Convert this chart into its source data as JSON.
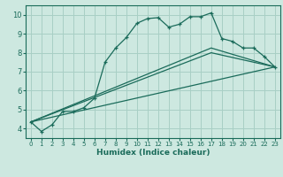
{
  "xlabel": "Humidex (Indice chaleur)",
  "xlim": [
    -0.5,
    23.5
  ],
  "ylim": [
    3.5,
    10.5
  ],
  "xticks": [
    0,
    1,
    2,
    3,
    4,
    5,
    6,
    7,
    8,
    9,
    10,
    11,
    12,
    13,
    14,
    15,
    16,
    17,
    18,
    19,
    20,
    21,
    22,
    23
  ],
  "yticks": [
    4,
    5,
    6,
    7,
    8,
    9,
    10
  ],
  "background_color": "#cde8e0",
  "grid_color": "#a8cfc5",
  "line_color": "#1a6b5a",
  "line1_x": [
    0,
    1,
    2,
    3,
    4,
    5,
    6,
    7,
    8,
    9,
    10,
    11,
    12,
    13,
    14,
    15,
    16,
    17,
    18,
    19,
    20,
    21,
    22,
    23
  ],
  "line1_y": [
    4.35,
    3.85,
    4.2,
    4.9,
    4.9,
    5.1,
    5.6,
    7.5,
    8.25,
    8.8,
    9.55,
    9.8,
    9.85,
    9.35,
    9.5,
    9.9,
    9.9,
    10.1,
    8.75,
    8.6,
    8.25,
    8.25,
    7.8,
    7.25
  ],
  "line2_x": [
    0,
    23
  ],
  "line2_y": [
    4.35,
    7.25
  ],
  "line3_x": [
    0,
    17,
    23
  ],
  "line3_y": [
    4.35,
    8.25,
    7.25
  ],
  "line4_x": [
    0,
    17,
    23
  ],
  "line4_y": [
    4.35,
    8.0,
    7.25
  ],
  "xtick_fontsize": 5.0,
  "ytick_fontsize": 6.0,
  "xlabel_fontsize": 6.5
}
